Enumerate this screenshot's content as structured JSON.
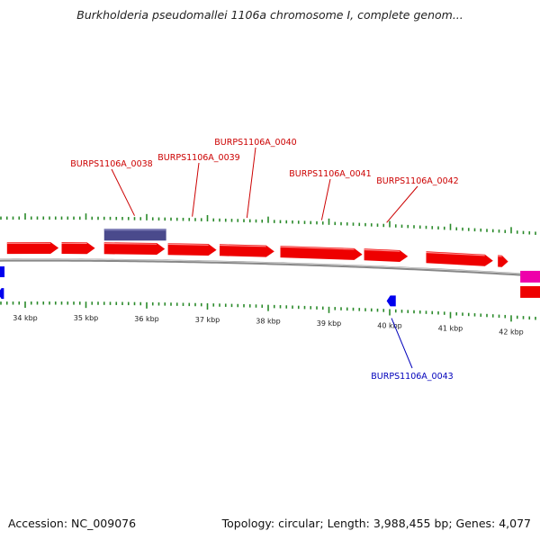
{
  "title": "Burkholderia pseudomallei 1106a chromosome I, complete genom...",
  "footer": {
    "accession": "Accession: NC_009076",
    "summary": "Topology: circular; Length: 3,988,455 bp; Genes: 4,077"
  },
  "colors": {
    "forward_gene": "#ee0000",
    "reverse_gene": "#0000ee",
    "other_feature": "#4a4a8c",
    "pink_feature": "#ee00aa",
    "backbone": "#888888",
    "tick": "#2a8a2a",
    "label_forward": "#cc0000",
    "label_reverse": "#0000bb"
  },
  "chart_data": {
    "type": "genome-map",
    "ticks_kbp": [
      {
        "value": 34,
        "label": "34 kbp"
      },
      {
        "value": 35,
        "label": "35 kbp"
      },
      {
        "value": 36,
        "label": "36 kbp"
      },
      {
        "value": 37,
        "label": "37 kbp"
      },
      {
        "value": 38,
        "label": "38 kbp"
      },
      {
        "value": 39,
        "label": "39 kbp"
      },
      {
        "value": 40,
        "label": "40 kbp"
      },
      {
        "value": 41,
        "label": "41 kbp"
      },
      {
        "value": 42,
        "label": "42 kbp"
      }
    ],
    "forward_genes_kbp": [
      [
        33.7,
        34.55
      ],
      [
        34.6,
        35.15
      ],
      [
        35.3,
        36.3
      ],
      [
        36.35,
        37.15
      ],
      [
        37.2,
        38.1
      ],
      [
        38.2,
        39.55
      ],
      [
        39.58,
        40.3
      ],
      [
        40.6,
        41.7
      ],
      [
        41.78,
        41.95
      ]
    ],
    "other_features_kbp": [
      {
        "start": 35.3,
        "end": 36.35,
        "kind": "other_feature"
      },
      {
        "start": 42.15,
        "end": 42.5,
        "kind": "pink_feature"
      }
    ],
    "reverse_genes_kbp": [
      [
        33.55,
        33.65
      ],
      [
        39.95,
        40.1
      ]
    ],
    "gene_labels": [
      {
        "text": "BURPS1106A_0038",
        "strand": "forward",
        "pos_kbp": 35.8
      },
      {
        "text": "BURPS1106A_0039",
        "strand": "forward",
        "pos_kbp": 36.75
      },
      {
        "text": "BURPS1106A_0040",
        "strand": "forward",
        "pos_kbp": 37.65
      },
      {
        "text": "BURPS1106A_0041",
        "strand": "forward",
        "pos_kbp": 38.88
      },
      {
        "text": "BURPS1106A_0042",
        "strand": "forward",
        "pos_kbp": 39.95
      },
      {
        "text": "BURPS1106A_0043",
        "strand": "reverse",
        "pos_kbp": 40.03
      }
    ]
  }
}
